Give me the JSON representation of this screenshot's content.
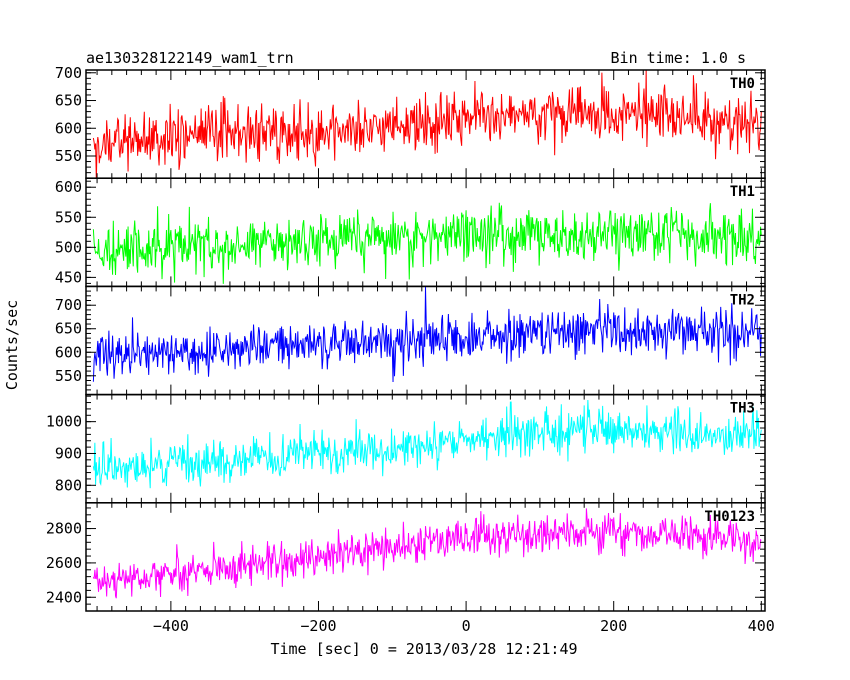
{
  "header": {
    "title": "ae130328122149_wam1_trn",
    "bin_time": "Bin time: 1.0 s"
  },
  "chart_data": {
    "type": "line",
    "title": "ae130328122149_wam1_trn",
    "subtitle": "Bin time: 1.0 s",
    "xlabel": "Time [sec] 0 = 2013/03/28 12:21:49",
    "ylabel": "Counts/sec",
    "xlim": [
      -515,
      405
    ],
    "x_range_data": [
      -505,
      400
    ],
    "x_step": 1.0,
    "xticks": [
      -400,
      -200,
      0,
      200,
      400
    ],
    "xtick_labels": [
      "−400",
      "−200",
      "0",
      "200",
      "400"
    ],
    "grid": false,
    "legend": "none",
    "panels": [
      {
        "name": "TH0",
        "color": "#ff0000",
        "ylim": [
          510,
          705
        ],
        "yticks": [
          550,
          600,
          650,
          700
        ],
        "ytick_labels": [
          "550",
          "600",
          "650",
          "700"
        ],
        "trend": [
          [
            -505,
            575
          ],
          [
            -300,
            590
          ],
          [
            -100,
            605
          ],
          [
            0,
            620
          ],
          [
            100,
            625
          ],
          [
            250,
            630
          ],
          [
            400,
            605
          ]
        ],
        "noise": 25
      },
      {
        "name": "TH1",
        "color": "#00ff00",
        "ylim": [
          435,
          615
        ],
        "yticks": [
          450,
          500,
          550,
          600
        ],
        "ytick_labels": [
          "450",
          "500",
          "550",
          "600"
        ],
        "trend": [
          [
            -505,
            495
          ],
          [
            -300,
            505
          ],
          [
            -100,
            515
          ],
          [
            0,
            520
          ],
          [
            200,
            522
          ],
          [
            400,
            515
          ]
        ],
        "noise": 23
      },
      {
        "name": "TH2",
        "color": "#0000ff",
        "ylim": [
          510,
          740
        ],
        "yticks": [
          550,
          600,
          650,
          700
        ],
        "ytick_labels": [
          "550",
          "600",
          "650",
          "700"
        ],
        "trend": [
          [
            -505,
            590
          ],
          [
            -300,
            610
          ],
          [
            -100,
            625
          ],
          [
            0,
            635
          ],
          [
            200,
            645
          ],
          [
            400,
            645
          ]
        ],
        "noise": 25
      },
      {
        "name": "TH3",
        "color": "#00ffff",
        "ylim": [
          745,
          1085
        ],
        "yticks": [
          800,
          900,
          1000
        ],
        "ytick_labels": [
          "800",
          "900",
          "1000"
        ],
        "trend": [
          [
            -505,
            850
          ],
          [
            -300,
            885
          ],
          [
            -100,
            915
          ],
          [
            0,
            945
          ],
          [
            150,
            975
          ],
          [
            300,
            960
          ],
          [
            400,
            950
          ]
        ],
        "noise": 32
      },
      {
        "name": "TH0123",
        "color": "#ff00ff",
        "ylim": [
          2320,
          2950
        ],
        "yticks": [
          2400,
          2600,
          2800
        ],
        "ytick_labels": [
          "2400",
          "2600",
          "2800"
        ],
        "trend": [
          [
            -505,
            2500
          ],
          [
            -300,
            2570
          ],
          [
            -150,
            2680
          ],
          [
            0,
            2740
          ],
          [
            200,
            2790
          ],
          [
            350,
            2760
          ],
          [
            400,
            2690
          ]
        ],
        "noise": 55
      }
    ]
  }
}
